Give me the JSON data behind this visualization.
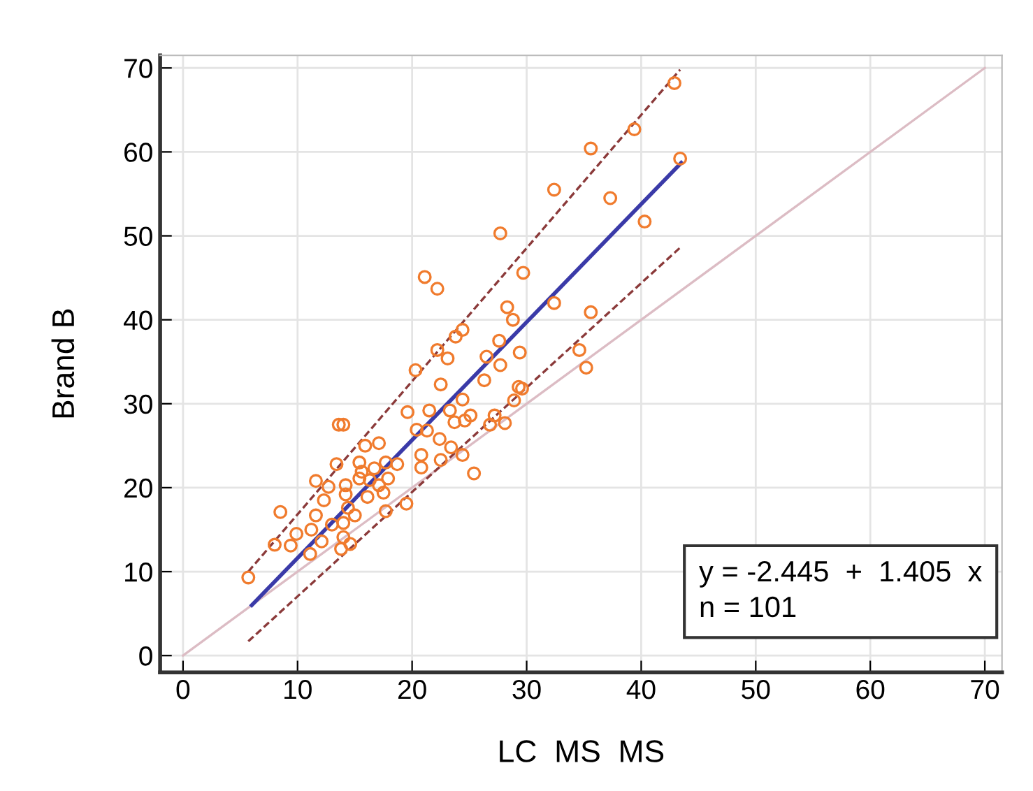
{
  "chart_data": {
    "type": "scatter",
    "xlabel": "LC  MS  MS",
    "ylabel": "Brand B",
    "xlim": [
      -2,
      71.5
    ],
    "ylim": [
      -2,
      71.5
    ],
    "xticks": [
      0,
      10,
      20,
      30,
      40,
      50,
      60,
      70
    ],
    "yticks": [
      0,
      10,
      20,
      30,
      40,
      50,
      60,
      70
    ],
    "grid": true,
    "legend": false,
    "annotations": [
      "y = -2.445  +  1.405  x",
      "n = 101"
    ],
    "series": [
      {
        "type": "line",
        "color": "#dcbcc4",
        "line_style": "solid",
        "marker": "none",
        "x": [
          0,
          70
        ],
        "values": [
          0,
          70
        ]
      },
      {
        "type": "line",
        "color": "#8b3a3a",
        "line_style": "dashed",
        "marker": "none",
        "x": [
          5.7,
          43.4
        ],
        "values": [
          10,
          69.8
        ]
      },
      {
        "type": "line",
        "color": "#8b3a3a",
        "line_style": "dashed",
        "marker": "none",
        "x": [
          5.7,
          43.4
        ],
        "values": [
          1.7,
          48.6
        ]
      },
      {
        "type": "line",
        "color": "#3a3aa8",
        "line_style": "solid",
        "marker": "none",
        "x": [
          6,
          43.5
        ],
        "values": [
          6.0,
          58.7
        ]
      },
      {
        "type": "scatter",
        "color": "#f07b2d",
        "marker": "circle",
        "x": [
          5.7,
          8.0,
          8.5,
          9.4,
          9.9,
          11.1,
          11.2,
          11.6,
          11.6,
          12.1,
          12.3,
          12.7,
          13.4,
          13.6,
          14.0,
          13.0,
          13.8,
          14.0,
          14.0,
          14.2,
          14.2,
          14.4,
          14.6,
          15.0,
          15.4,
          15.4,
          15.6,
          15.9,
          16.1,
          16.3,
          16.7,
          17.1,
          17.1,
          17.5,
          17.7,
          17.7,
          17.9,
          18.7,
          19.5,
          19.6,
          20.3,
          20.4,
          20.8,
          20.8,
          21.3,
          21.5,
          22.2,
          22.4,
          22.5,
          22.5,
          23.1,
          23.3,
          23.4,
          23.7,
          23.8,
          24.4,
          24.4,
          24.4,
          24.6,
          25.1,
          25.4,
          26.3,
          26.5,
          26.8,
          27.2,
          27.6,
          27.7,
          28.1,
          28.9,
          29.3,
          29.4,
          28.8,
          34.6,
          35.2,
          42.9,
          39.4,
          43.4,
          35.6,
          32.4,
          37.3,
          40.3,
          27.7,
          21.1,
          22.2,
          29.7,
          28.3,
          32.4,
          35.6,
          29.6
        ],
        "values": [
          9.3,
          13.2,
          17.1,
          13.1,
          14.5,
          12.1,
          15.0,
          16.7,
          20.8,
          13.6,
          18.5,
          20.1,
          22.8,
          27.5,
          27.5,
          15.6,
          12.7,
          14.1,
          15.8,
          20.3,
          19.2,
          17.6,
          13.3,
          16.7,
          23.0,
          21.1,
          21.9,
          25.0,
          18.9,
          20.9,
          22.3,
          25.3,
          20.3,
          19.4,
          17.2,
          23.0,
          21.1,
          22.8,
          18.1,
          29.0,
          34.0,
          26.9,
          23.9,
          22.4,
          26.8,
          29.2,
          36.4,
          25.8,
          23.3,
          32.3,
          35.4,
          29.2,
          24.8,
          27.8,
          38.0,
          38.8,
          30.5,
          23.9,
          28.0,
          28.6,
          21.7,
          32.8,
          35.6,
          27.5,
          28.6,
          37.5,
          34.6,
          27.7,
          30.4,
          32.0,
          36.1,
          40.0,
          36.4,
          34.3,
          68.2,
          62.7,
          59.2,
          60.4,
          55.5,
          54.5,
          51.7,
          50.3,
          45.1,
          43.7,
          45.6,
          41.5,
          42.0,
          40.9,
          31.8
        ]
      }
    ]
  }
}
